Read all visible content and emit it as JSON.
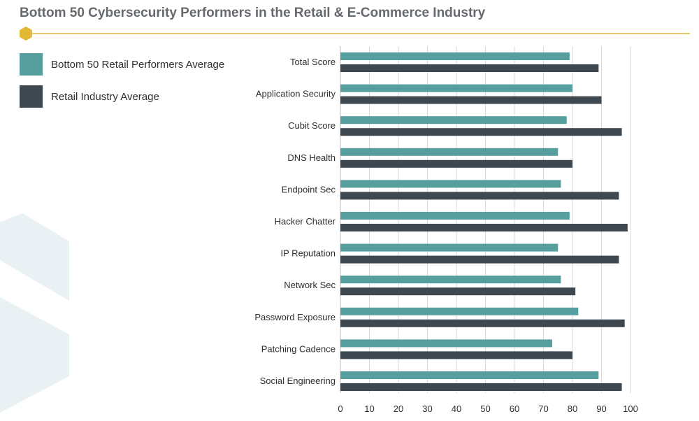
{
  "colors": {
    "series1": "#579e9f",
    "series2": "#3d4850",
    "accent": "#e2b935",
    "title": "#666a6e",
    "watermark": "#e9f1f4",
    "grid": "#d8d8d8"
  },
  "legend": {
    "items": [
      {
        "label": "Bottom 50 Retail Performers Average"
      },
      {
        "label": "Retail Industry Average"
      }
    ]
  },
  "chart_data": {
    "type": "bar",
    "orientation": "horizontal",
    "title": "Bottom 50 Cybersecurity Performers in the Retail & E-Commerce Industry",
    "categories": [
      "Total Score",
      "Application Security",
      "Cubit Score",
      "DNS Health",
      "Endpoint Sec",
      "Hacker Chatter",
      "IP Reputation",
      "Network Sec",
      "Password Exposure",
      "Patching Cadence",
      "Social Engineering"
    ],
    "series": [
      {
        "name": "Bottom 50 Retail Performers Average",
        "values": [
          79,
          80,
          78,
          75,
          76,
          79,
          75,
          76,
          82,
          73,
          89
        ]
      },
      {
        "name": "Retail Industry Average",
        "values": [
          89,
          90,
          97,
          80,
          96,
          99,
          96,
          81,
          98,
          80,
          97
        ]
      }
    ],
    "xlim": [
      0,
      100
    ],
    "xticks": [
      0,
      10,
      20,
      30,
      40,
      50,
      60,
      70,
      80,
      90,
      100
    ],
    "grid": "vertical",
    "legend_position": "top-left"
  }
}
